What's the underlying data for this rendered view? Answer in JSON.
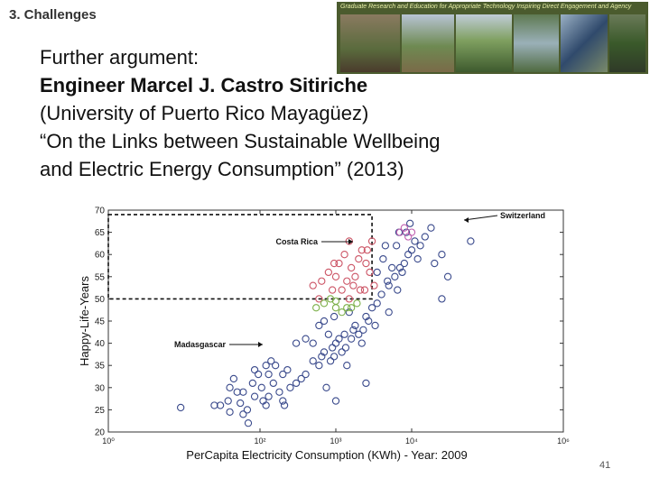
{
  "slide": {
    "section_title": "3. Challenges",
    "banner_text": "Graduate Research and Education for Appropriate Technology Inspiring Direct Engagement and Agency",
    "text_lines": [
      "Further argument:",
      "Engineer Marcel J. Castro Sitiriche",
      "(University of Puerto Rico Mayagüez)",
      "“On the Links between Sustainable Wellbeing",
      "and Electric Energy Consumption” (2013)"
    ],
    "page_number": "41"
  },
  "chart_data": {
    "type": "scatter",
    "title": "",
    "xlabel": "PerCapita Electricity Consumption (KWh) - Year: 2009",
    "ylabel": "Happy-Life-Years",
    "x_scale": "log",
    "xlim": [
      1,
      1000000
    ],
    "ylim": [
      20,
      70
    ],
    "x_ticks": [
      "10⁰",
      "10²",
      "10³",
      "10⁴",
      "10⁶"
    ],
    "y_ticks": [
      "20",
      "25",
      "30",
      "35",
      "40",
      "45",
      "50",
      "55",
      "60",
      "65",
      "70"
    ],
    "annotations": [
      {
        "label": "Switzerland",
        "x": 8000,
        "y": 68
      },
      {
        "label": "Costa Rica",
        "x": 1800,
        "y": 62
      },
      {
        "label": "Madasgascar",
        "x": 50,
        "y": 39.5
      }
    ],
    "region": {
      "x": [
        1,
        3000
      ],
      "y": [
        50,
        69
      ]
    },
    "series": [
      {
        "color": "#3a4a8c",
        "points": [
          [
            9,
            25.5
          ],
          [
            30,
            26
          ],
          [
            38,
            27
          ],
          [
            55,
            26.5
          ],
          [
            68,
            25
          ],
          [
            40,
            30
          ],
          [
            45,
            32
          ],
          [
            50,
            29
          ],
          [
            60,
            29
          ],
          [
            80,
            31
          ],
          [
            85,
            34
          ],
          [
            95,
            33
          ],
          [
            105,
            30
          ],
          [
            110,
            27
          ],
          [
            130,
            28
          ],
          [
            150,
            31
          ],
          [
            180,
            29
          ],
          [
            200,
            27
          ],
          [
            250,
            30
          ],
          [
            300,
            31
          ],
          [
            350,
            32
          ],
          [
            40,
            24.5
          ],
          [
            60,
            24
          ],
          [
            70,
            22
          ],
          [
            25,
            26
          ],
          [
            120,
            35
          ],
          [
            140,
            36
          ],
          [
            160,
            35
          ],
          [
            200,
            33
          ],
          [
            230,
            34
          ],
          [
            130,
            33
          ],
          [
            400,
            33
          ],
          [
            500,
            36
          ],
          [
            600,
            35
          ],
          [
            700,
            38
          ],
          [
            850,
            36
          ],
          [
            950,
            37
          ],
          [
            1000,
            40
          ],
          [
            1200,
            38
          ],
          [
            1400,
            35
          ],
          [
            1100,
            41
          ],
          [
            1300,
            42
          ],
          [
            1600,
            41
          ],
          [
            1800,
            44
          ],
          [
            2000,
            42
          ],
          [
            2300,
            43
          ],
          [
            2500,
            46
          ],
          [
            300,
            40
          ],
          [
            400,
            41
          ],
          [
            500,
            40
          ],
          [
            600,
            44
          ],
          [
            700,
            45
          ],
          [
            800,
            42
          ],
          [
            950,
            46
          ],
          [
            1500,
            47
          ],
          [
            1700,
            43
          ],
          [
            2200,
            40
          ],
          [
            2700,
            45
          ],
          [
            3300,
            44
          ],
          [
            2500,
            31
          ],
          [
            1000,
            27
          ],
          [
            750,
            30
          ],
          [
            3000,
            48
          ],
          [
            3500,
            49
          ],
          [
            4000,
            51
          ],
          [
            5000,
            53
          ],
          [
            6000,
            55
          ],
          [
            7000,
            57
          ],
          [
            8000,
            58
          ],
          [
            9000,
            60
          ],
          [
            10000,
            61
          ],
          [
            11000,
            63
          ],
          [
            13000,
            62
          ],
          [
            15000,
            64
          ],
          [
            18000,
            66
          ],
          [
            20000,
            58
          ],
          [
            25000,
            60
          ],
          [
            30000,
            55
          ],
          [
            60000,
            63
          ],
          [
            25000,
            50
          ],
          [
            5000,
            47
          ],
          [
            3500,
            56
          ],
          [
            4500,
            62
          ],
          [
            6500,
            52
          ],
          [
            8500,
            65
          ],
          [
            12000,
            59
          ],
          [
            4200,
            59
          ],
          [
            120,
            26
          ],
          [
            85,
            28
          ],
          [
            210,
            26
          ],
          [
            650,
            37
          ],
          [
            900,
            39
          ],
          [
            1350,
            39
          ],
          [
            5500,
            57
          ],
          [
            7500,
            56
          ],
          [
            4800,
            54
          ],
          [
            6800,
            65
          ],
          [
            9500,
            67
          ],
          [
            6300,
            62
          ]
        ]
      },
      {
        "color": "#cc5566",
        "points": [
          [
            500,
            53
          ],
          [
            650,
            54
          ],
          [
            800,
            56
          ],
          [
            900,
            52
          ],
          [
            1000,
            55
          ],
          [
            1100,
            58
          ],
          [
            1200,
            52
          ],
          [
            1400,
            54
          ],
          [
            1600,
            57
          ],
          [
            1800,
            55
          ],
          [
            2000,
            59
          ],
          [
            2200,
            61
          ],
          [
            2500,
            58
          ],
          [
            2800,
            56
          ],
          [
            1300,
            60
          ],
          [
            1500,
            63
          ],
          [
            600,
            50
          ],
          [
            2600,
            61
          ],
          [
            3000,
            63
          ],
          [
            3200,
            53
          ],
          [
            2400,
            52
          ],
          [
            1700,
            53
          ],
          [
            950,
            58
          ],
          [
            1500,
            50
          ],
          [
            2100,
            52
          ]
        ]
      },
      {
        "color": "#7db04a",
        "points": [
          [
            700,
            49
          ],
          [
            850,
            50
          ],
          [
            1000,
            48
          ],
          [
            1200,
            47
          ],
          [
            1400,
            48
          ],
          [
            1600,
            48
          ],
          [
            1900,
            49
          ],
          [
            550,
            48
          ],
          [
            1000,
            49.5
          ]
        ]
      },
      {
        "color": "#c060b0",
        "points": [
          [
            7000,
            65
          ],
          [
            8000,
            66
          ],
          [
            9000,
            64
          ],
          [
            10000,
            65
          ]
        ]
      }
    ]
  }
}
